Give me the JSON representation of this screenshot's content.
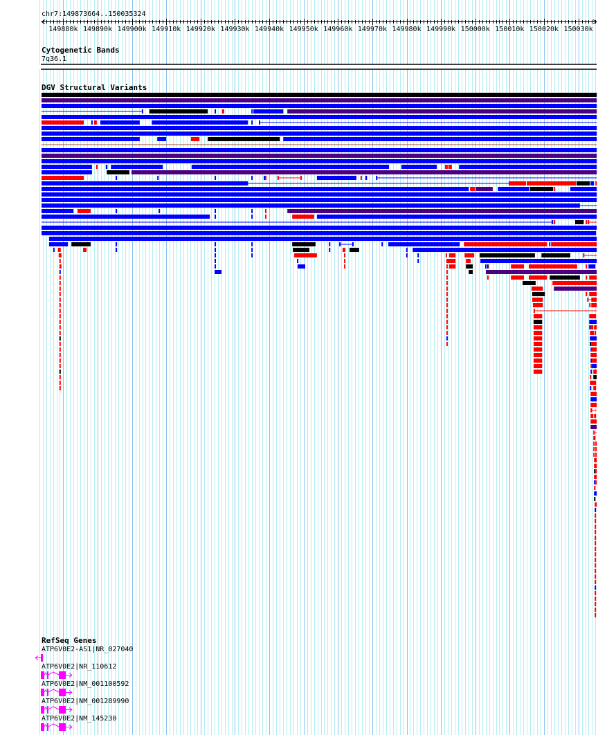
{
  "header": {
    "location_label": "chr7:149873664..150035324"
  },
  "view": {
    "chrom": "chr7",
    "start": 149873664,
    "end": 150035324
  },
  "ruler": {
    "labels": [
      "149880k",
      "149890k",
      "149900k",
      "149910k",
      "149920k",
      "149930k",
      "149940k",
      "149950k",
      "149960k",
      "149970k",
      "149980k",
      "149990k",
      "150000k",
      "150010k",
      "150020k",
      "150030k"
    ]
  },
  "tracks": {
    "cytobands": {
      "title": "Cytogenetic Bands",
      "band": "7q36.1"
    },
    "dgv": {
      "title": "DGV Structural Variants"
    },
    "refseq": {
      "title": "RefSeq Genes"
    }
  },
  "colors": {
    "b": "#0000ff",
    "r": "#ff0000",
    "k": "#000000",
    "p": "#4b0082",
    "n": "#a0522d",
    "gene": "#ff00ff",
    "grid_minor": "#b2eef2",
    "grid_major": "#86c2ee"
  },
  "dgv_rows_offset_kb": [
    [
      [
        0,
        161.7,
        "k"
      ]
    ],
    [
      [
        0,
        161.7,
        "p"
      ]
    ],
    [
      [
        0,
        161.7,
        "b"
      ]
    ],
    [
      [
        0,
        29.2,
        "b",
        "l"
      ],
      [
        29.2,
        29.6,
        "b"
      ],
      [
        31.4,
        48.4,
        "k"
      ],
      [
        50.4,
        50.8,
        "b"
      ],
      [
        52.6,
        53.2,
        "r"
      ],
      [
        61.1,
        61.5,
        "b"
      ],
      [
        61.7,
        70.4,
        "b"
      ],
      [
        71.6,
        161.7,
        "p"
      ]
    ],
    [
      [
        0,
        161.7,
        "b"
      ]
    ],
    [
      [
        0,
        12.3,
        "r"
      ],
      [
        14.5,
        14.9,
        "b"
      ],
      [
        15.3,
        16.1,
        "r"
      ],
      [
        17.1,
        28.6,
        "b"
      ],
      [
        32.1,
        60.1,
        "b"
      ],
      [
        61.1,
        61.5,
        "b"
      ],
      [
        63.3,
        63.7,
        "p"
      ],
      [
        63.7,
        161.7,
        "b",
        "l"
      ]
    ],
    [
      [
        0,
        161.7,
        "b"
      ]
    ],
    [
      [
        0,
        161.7,
        "b"
      ]
    ],
    [
      [
        0,
        28.6,
        "b"
      ],
      [
        33.7,
        36.3,
        "b"
      ],
      [
        43.5,
        46.0,
        "r"
      ],
      [
        48.4,
        69.4,
        "k"
      ],
      [
        70.4,
        161.7,
        "b"
      ]
    ],
    [
      [
        0,
        161.7,
        "n",
        "l"
      ]
    ],
    [
      [
        0,
        161.7,
        "b"
      ]
    ],
    [
      [
        0,
        161.7,
        "p"
      ]
    ],
    [
      [
        0,
        161.7,
        "b"
      ]
    ],
    [
      [
        0,
        14.7,
        "b"
      ],
      [
        15.9,
        16.3,
        "r"
      ],
      [
        18.7,
        19.2,
        "b"
      ],
      [
        20.2,
        35.3,
        "b"
      ],
      [
        43.7,
        101.2,
        "b"
      ],
      [
        104.8,
        115.1,
        "b"
      ],
      [
        117.5,
        118.3,
        "r",
        "i"
      ],
      [
        118.5,
        119.5,
        "r"
      ],
      [
        121.6,
        161.7,
        "b"
      ]
    ],
    [
      [
        0,
        14.7,
        "b"
      ],
      [
        19.0,
        25.6,
        "k"
      ],
      [
        26.2,
        161.7,
        "p"
      ]
    ],
    [
      [
        0,
        12.3,
        "r"
      ],
      [
        21.6,
        22.0,
        "b"
      ],
      [
        33.7,
        34.1,
        "b"
      ],
      [
        50.4,
        50.8,
        "b"
      ],
      [
        61.1,
        61.5,
        "b"
      ],
      [
        64.7,
        65.1,
        "b"
      ],
      [
        65.1,
        65.5,
        "r"
      ],
      [
        68.7,
        75.8,
        "r",
        "i"
      ],
      [
        80.2,
        91.7,
        "b"
      ],
      [
        92.9,
        93.3,
        "r"
      ],
      [
        94.3,
        94.8,
        "b"
      ],
      [
        97.4,
        97.8,
        "b"
      ],
      [
        97.8,
        161.7,
        "b",
        "l"
      ]
    ],
    [
      [
        0,
        60.1,
        "b"
      ],
      [
        60.1,
        136.1,
        "b",
        "l"
      ],
      [
        136.1,
        136.3,
        "b"
      ],
      [
        136.3,
        140.3,
        "r"
      ],
      [
        140.3,
        141.1,
        "r",
        "i"
      ],
      [
        141.3,
        155.6,
        "r"
      ],
      [
        155.8,
        159.7,
        "k"
      ],
      [
        159.9,
        160.9,
        "b"
      ],
      [
        161.3,
        161.7,
        "r"
      ]
    ],
    [
      [
        0,
        124.4,
        "b"
      ],
      [
        124.8,
        126.2,
        "r"
      ],
      [
        126.4,
        131.4,
        "p"
      ],
      [
        132.9,
        142.1,
        "b"
      ],
      [
        142.3,
        149.0,
        "k"
      ],
      [
        149.2,
        149.6,
        "r"
      ],
      [
        154.0,
        161.7,
        "b"
      ]
    ],
    [
      [
        0,
        161.7,
        "b"
      ]
    ],
    [
      [
        0,
        161.7,
        "b"
      ]
    ],
    [
      [
        0,
        156.8,
        "b"
      ],
      [
        156.8,
        161.7,
        "b",
        "l"
      ]
    ],
    [
      [
        0,
        9.3,
        "b"
      ],
      [
        10.5,
        14.3,
        "r"
      ],
      [
        21.6,
        22.0,
        "b"
      ],
      [
        34.1,
        34.5,
        "b"
      ],
      [
        50.4,
        50.8,
        "b"
      ],
      [
        61.1,
        61.5,
        "b"
      ],
      [
        65.1,
        65.5,
        "r"
      ],
      [
        71.6,
        161.7,
        "p"
      ]
    ],
    [
      [
        0,
        49.0,
        "b"
      ],
      [
        50.4,
        50.8,
        "b"
      ],
      [
        61.1,
        61.5,
        "b"
      ],
      [
        65.1,
        65.5,
        "r"
      ],
      [
        73.0,
        79.4,
        "r"
      ],
      [
        80.2,
        161.7,
        "b"
      ]
    ],
    [
      [
        0,
        148.6,
        "b",
        "l"
      ],
      [
        148.6,
        149.0,
        "b"
      ],
      [
        149.2,
        149.6,
        "r"
      ],
      [
        155.4,
        157.9,
        "k"
      ],
      [
        158.5,
        158.9,
        "r"
      ],
      [
        159.1,
        159.5,
        "r"
      ],
      [
        159.5,
        161.7,
        "r",
        "l"
      ]
    ],
    [
      [
        0,
        161.7,
        "b"
      ]
    ],
    [
      [
        0,
        161.5,
        "b"
      ]
    ],
    [
      [
        2.2,
        161.7,
        "b"
      ]
    ],
    [
      [
        2.2,
        7.7,
        "b"
      ],
      [
        8.7,
        14.3,
        "k"
      ],
      [
        21.6,
        22.0,
        "b"
      ],
      [
        50.4,
        50.8,
        "b"
      ],
      [
        61.1,
        61.5,
        "b"
      ],
      [
        73.0,
        79.8,
        "k"
      ],
      [
        83.7,
        84.1,
        "b"
      ],
      [
        86.7,
        90.9,
        "b",
        "i"
      ],
      [
        99.0,
        99.4,
        "b"
      ],
      [
        101.0,
        121.8,
        "b"
      ],
      [
        123.0,
        147.2,
        "r"
      ],
      [
        147.8,
        148.2,
        "b"
      ],
      [
        148.4,
        161.7,
        "r"
      ]
    ],
    [
      [
        3.4,
        3.8,
        "b"
      ],
      [
        4.8,
        5.6,
        "r"
      ],
      [
        12.1,
        13.1,
        "r"
      ],
      [
        21.6,
        22.0,
        "b"
      ],
      [
        50.4,
        50.8,
        "b"
      ],
      [
        61.1,
        61.5,
        "b"
      ],
      [
        73.2,
        78.0,
        "k"
      ],
      [
        83.7,
        84.1,
        "b"
      ],
      [
        87.7,
        88.5,
        "r",
        "i"
      ],
      [
        89.7,
        92.5,
        "k"
      ],
      [
        106.2,
        106.6,
        "b"
      ],
      [
        108.1,
        161.7,
        "b"
      ]
    ],
    [
      [
        5.0,
        5.8,
        "r",
        "i"
      ],
      [
        50.4,
        50.8,
        "b"
      ],
      [
        61.1,
        61.5,
        "b"
      ],
      [
        73.6,
        80.2,
        "r"
      ],
      [
        88.1,
        88.5,
        "r"
      ],
      [
        106.2,
        106.6,
        "b"
      ],
      [
        109.5,
        109.9,
        "b"
      ],
      [
        117.7,
        118.1,
        "r"
      ],
      [
        118.7,
        120.6,
        "r"
      ],
      [
        123.2,
        126.0,
        "r"
      ],
      [
        127.6,
        143.7,
        "k"
      ],
      [
        145.6,
        154.0,
        "k"
      ],
      [
        157.7,
        158.1,
        "r"
      ],
      [
        158.1,
        161.7,
        "r",
        "l"
      ]
    ],
    [
      [
        5.2,
        5.6,
        "r"
      ],
      [
        50.4,
        50.8,
        "b"
      ],
      [
        74.4,
        74.8,
        "b"
      ],
      [
        88.1,
        88.5,
        "r"
      ],
      [
        109.5,
        109.9,
        "b"
      ],
      [
        117.9,
        120.6,
        "r"
      ],
      [
        123.6,
        125.0,
        "r"
      ],
      [
        127.8,
        161.7,
        "b"
      ]
    ],
    [
      [
        5.2,
        5.8,
        "r"
      ],
      [
        50.4,
        50.8,
        "b"
      ],
      [
        74.6,
        76.8,
        "b"
      ],
      [
        88.1,
        88.5,
        "r"
      ],
      [
        117.9,
        118.3,
        "r"
      ],
      [
        118.7,
        120.6,
        "r"
      ],
      [
        123.6,
        125.6,
        "k"
      ],
      [
        129.2,
        129.6,
        "b"
      ],
      [
        129.8,
        130.2,
        "k"
      ],
      [
        136.7,
        140.5,
        "r"
      ],
      [
        141.9,
        156.0,
        "r"
      ],
      [
        158.5,
        158.9,
        "r"
      ],
      [
        159.3,
        161.3,
        "b"
      ]
    ],
    [
      [
        50.4,
        52.4,
        "b"
      ],
      [
        124.4,
        125.6,
        "k"
      ],
      [
        129.4,
        161.7,
        "p"
      ]
    ],
    [
      [
        129.8,
        130.2,
        "r"
      ],
      [
        136.7,
        140.5,
        "r"
      ],
      [
        141.9,
        147.2,
        "r"
      ],
      [
        148.0,
        156.8,
        "k"
      ],
      [
        158.5,
        158.9,
        "r"
      ],
      [
        159.5,
        161.7,
        "r"
      ]
    ],
    [
      [
        140.1,
        143.9,
        "k"
      ],
      [
        148.8,
        161.7,
        "r"
      ]
    ],
    [
      [
        142.7,
        146.0,
        "r"
      ],
      [
        149.2,
        161.7,
        "p"
      ]
    ],
    [
      [
        142.9,
        146.6,
        "k"
      ],
      [
        158.5,
        158.9,
        "r"
      ],
      [
        159.5,
        161.7,
        "r"
      ]
    ],
    [
      [
        142.9,
        146.0,
        "r"
      ],
      [
        158.9,
        159.3,
        "r"
      ],
      [
        159.3,
        160.1,
        "r",
        "l"
      ],
      [
        160.1,
        161.7,
        "r"
      ]
    ],
    [
      [
        143.1,
        146.0,
        "r"
      ],
      [
        159.5,
        159.9,
        "r"
      ],
      [
        160.1,
        161.7,
        "r"
      ]
    ],
    [
      [
        143.3,
        143.7,
        "r"
      ],
      [
        143.7,
        161.7,
        "r",
        "l"
      ]
    ],
    [
      [
        159.5,
        161.5,
        "r"
      ]
    ],
    [
      [
        159.5,
        161.7,
        "b"
      ]
    ],
    [
      [
        159.5,
        159.9,
        "b"
      ],
      [
        159.9,
        160.7,
        "r"
      ],
      [
        160.9,
        161.7,
        "r"
      ]
    ],
    [
      [
        159.7,
        160.9,
        "r"
      ],
      [
        161.1,
        161.5,
        "r"
      ]
    ],
    [
      [
        159.7,
        161.7,
        "b"
      ]
    ],
    [
      [
        159.7,
        160.1,
        "k"
      ],
      [
        160.1,
        161.7,
        "r"
      ]
    ],
    [
      [
        159.9,
        160.1,
        "b"
      ],
      [
        160.1,
        161.7,
        "r"
      ]
    ],
    [
      [
        159.9,
        161.7,
        "r"
      ]
    ],
    [
      [
        159.9,
        160.3,
        "b"
      ],
      [
        160.3,
        161.7,
        "r"
      ]
    ],
    [
      [
        159.9,
        160.3,
        "r"
      ],
      [
        160.3,
        161.7,
        "b"
      ]
    ],
    [
      [
        159.9,
        160.3,
        "b"
      ],
      [
        160.7,
        161.7,
        "r"
      ]
    ],
    [
      [
        159.7,
        160.1,
        "r"
      ],
      [
        160.7,
        161.7,
        "k"
      ]
    ],
    [
      [
        159.7,
        161.5,
        "r"
      ]
    ],
    [
      [
        159.7,
        160.1,
        "b"
      ],
      [
        160.7,
        161.5,
        "r"
      ]
    ],
    [
      [
        159.9,
        161.7,
        "r"
      ]
    ],
    [
      [
        159.9,
        161.7,
        "b"
      ]
    ],
    [
      [
        159.9,
        161.7,
        "r"
      ]
    ],
    [
      [
        159.9,
        160.3,
        "r",
        "i"
      ],
      [
        160.3,
        161.7,
        "r",
        "l"
      ]
    ],
    [
      [
        159.9,
        160.7,
        "r"
      ],
      [
        160.9,
        161.5,
        "r"
      ]
    ],
    [
      [
        159.9,
        161.7,
        "r"
      ]
    ],
    [
      [
        159.9,
        161.7,
        "p"
      ]
    ],
    [
      [
        160.7,
        161.1,
        "r"
      ],
      [
        161.1,
        161.7,
        "r",
        "l"
      ]
    ],
    [
      [
        160.7,
        161.3,
        "r"
      ]
    ],
    [
      [
        160.7,
        161.1,
        "r"
      ],
      [
        161.3,
        161.7,
        "r"
      ]
    ],
    [
      [
        160.7,
        161.1,
        "r"
      ],
      [
        161.3,
        161.7,
        "r"
      ]
    ],
    [
      [
        160.7,
        161.1,
        "r"
      ],
      [
        161.3,
        161.7,
        "r"
      ]
    ],
    [
      [
        160.9,
        161.7,
        "r"
      ]
    ],
    [
      [
        160.9,
        161.7,
        "r"
      ]
    ],
    [
      [
        160.9,
        161.3,
        "k"
      ],
      [
        161.3,
        161.7,
        "r"
      ]
    ],
    [
      [
        160.9,
        161.7,
        "r"
      ]
    ],
    [
      [
        160.9,
        161.3,
        "b"
      ],
      [
        161.3,
        161.7,
        "r"
      ]
    ],
    [
      [
        160.9,
        161.3,
        "r"
      ]
    ],
    [
      [
        160.9,
        161.7,
        "b"
      ]
    ],
    [
      [
        160.9,
        161.3,
        "k"
      ]
    ],
    [
      [
        161.1,
        161.7,
        "r"
      ]
    ],
    [
      [
        161.1,
        161.3,
        "b"
      ]
    ]
  ],
  "dgv_stacks_offset_kb": [
    {
      "start": 5.2,
      "end": 5.6,
      "rows": [
        32,
        53
      ],
      "color": "r",
      "except": {
        "32": "b",
        "44": "k",
        "50": "k"
      }
    },
    {
      "start": 117.9,
      "end": 118.3,
      "rows": [
        32,
        45
      ],
      "color": "r",
      "except": {
        "44": "b"
      }
    },
    {
      "start": 143.3,
      "end": 145.8,
      "rows": [
        40,
        50
      ],
      "color": "r",
      "except": {
        "41": "k"
      }
    },
    {
      "start": 161.1,
      "end": 161.5,
      "rows": [
        76,
        94
      ],
      "color": "r",
      "except": {
        "89": "b"
      }
    }
  ],
  "genes": [
    {
      "label": "ATP6V0E2-AS1|NR_027040",
      "strand": "-"
    },
    {
      "label": "ATP6V0E2|NR_110612",
      "strand": "+"
    },
    {
      "label": "ATP6V0E2|NM_001100592",
      "strand": "+"
    },
    {
      "label": "ATP6V0E2|NM_001289990",
      "strand": "+"
    },
    {
      "label": "ATP6V0E2|NM_145230",
      "strand": "+"
    }
  ]
}
